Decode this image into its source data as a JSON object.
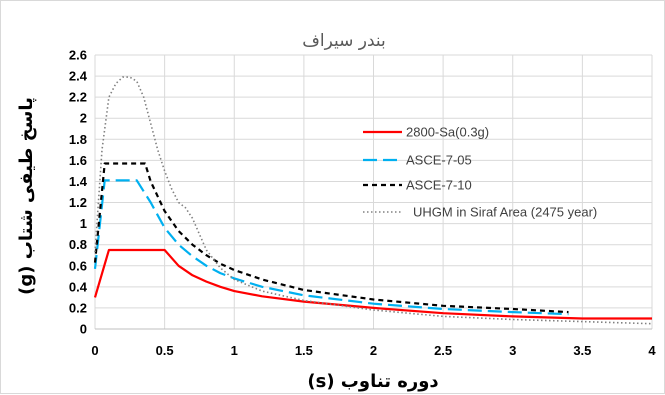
{
  "chart_data": {
    "type": "line",
    "title": "بندر سیراف",
    "xlabel": "دوره تناوب (s)",
    "ylabel": "پاسخ طیفی شتاب (g)",
    "xlim": [
      0,
      4
    ],
    "ylim": [
      0,
      2.6
    ],
    "grid": true,
    "legend_position": "right",
    "x_ticks": [
      "0",
      "0.5",
      "1",
      "1.5",
      "2",
      "2.5",
      "3",
      "3.5",
      "4"
    ],
    "y_ticks": [
      "0",
      "0.2",
      "0.4",
      "0.6",
      "0.8",
      "1",
      "1.2",
      "1.4",
      "1.6",
      "1.8",
      "2",
      "2.2",
      "2.4",
      "2.6"
    ],
    "series": [
      {
        "name": "2800-Sa(0.3g)",
        "color": "#ff0000",
        "dash": "solid",
        "points": [
          [
            0,
            0.3
          ],
          [
            0.1,
            0.75
          ],
          [
            0.5,
            0.75
          ],
          [
            0.6,
            0.6
          ],
          [
            0.7,
            0.51
          ],
          [
            0.8,
            0.45
          ],
          [
            0.9,
            0.4
          ],
          [
            1.0,
            0.36
          ],
          [
            1.2,
            0.31
          ],
          [
            1.5,
            0.26
          ],
          [
            2.0,
            0.2
          ],
          [
            2.5,
            0.15
          ],
          [
            3.0,
            0.12
          ],
          [
            3.5,
            0.1
          ],
          [
            4.0,
            0.1
          ]
        ]
      },
      {
        "name": "ASCE-7-05",
        "color": "#00b0f0",
        "dash": "long-dash",
        "points": [
          [
            0,
            0.57
          ],
          [
            0.07,
            1.41
          ],
          [
            0.3,
            1.41
          ],
          [
            0.4,
            1.2
          ],
          [
            0.5,
            0.96
          ],
          [
            0.6,
            0.8
          ],
          [
            0.7,
            0.69
          ],
          [
            0.8,
            0.6
          ],
          [
            0.9,
            0.53
          ],
          [
            1.0,
            0.48
          ],
          [
            1.2,
            0.4
          ],
          [
            1.5,
            0.32
          ],
          [
            2.0,
            0.24
          ],
          [
            2.5,
            0.19
          ],
          [
            3.0,
            0.16
          ],
          [
            3.4,
            0.14
          ]
        ]
      },
      {
        "name": "ASCE-7-10",
        "color": "#000000",
        "dash": "short-dash",
        "points": [
          [
            0,
            0.63
          ],
          [
            0.07,
            1.57
          ],
          [
            0.36,
            1.57
          ],
          [
            0.4,
            1.4
          ],
          [
            0.5,
            1.12
          ],
          [
            0.6,
            0.93
          ],
          [
            0.7,
            0.8
          ],
          [
            0.8,
            0.7
          ],
          [
            0.9,
            0.62
          ],
          [
            1.0,
            0.56
          ],
          [
            1.2,
            0.47
          ],
          [
            1.5,
            0.37
          ],
          [
            2.0,
            0.28
          ],
          [
            2.5,
            0.22
          ],
          [
            3.0,
            0.19
          ],
          [
            3.4,
            0.16
          ]
        ]
      },
      {
        "name": "UHGM in Siraf Area (2475 year)",
        "color": "#808080",
        "dash": "dotted",
        "points": [
          [
            0,
            0.73
          ],
          [
            0.05,
            1.7
          ],
          [
            0.1,
            2.2
          ],
          [
            0.15,
            2.33
          ],
          [
            0.2,
            2.39
          ],
          [
            0.25,
            2.39
          ],
          [
            0.3,
            2.35
          ],
          [
            0.35,
            2.2
          ],
          [
            0.4,
            1.95
          ],
          [
            0.45,
            1.7
          ],
          [
            0.5,
            1.5
          ],
          [
            0.55,
            1.33
          ],
          [
            0.6,
            1.2
          ],
          [
            0.65,
            1.15
          ],
          [
            0.7,
            1.05
          ],
          [
            0.75,
            0.9
          ],
          [
            0.8,
            0.75
          ],
          [
            0.9,
            0.58
          ],
          [
            1.0,
            0.47
          ],
          [
            1.2,
            0.36
          ],
          [
            1.5,
            0.27
          ],
          [
            2.0,
            0.18
          ],
          [
            2.5,
            0.12
          ],
          [
            3.0,
            0.09
          ],
          [
            3.5,
            0.07
          ],
          [
            4.0,
            0.05
          ]
        ]
      }
    ]
  }
}
